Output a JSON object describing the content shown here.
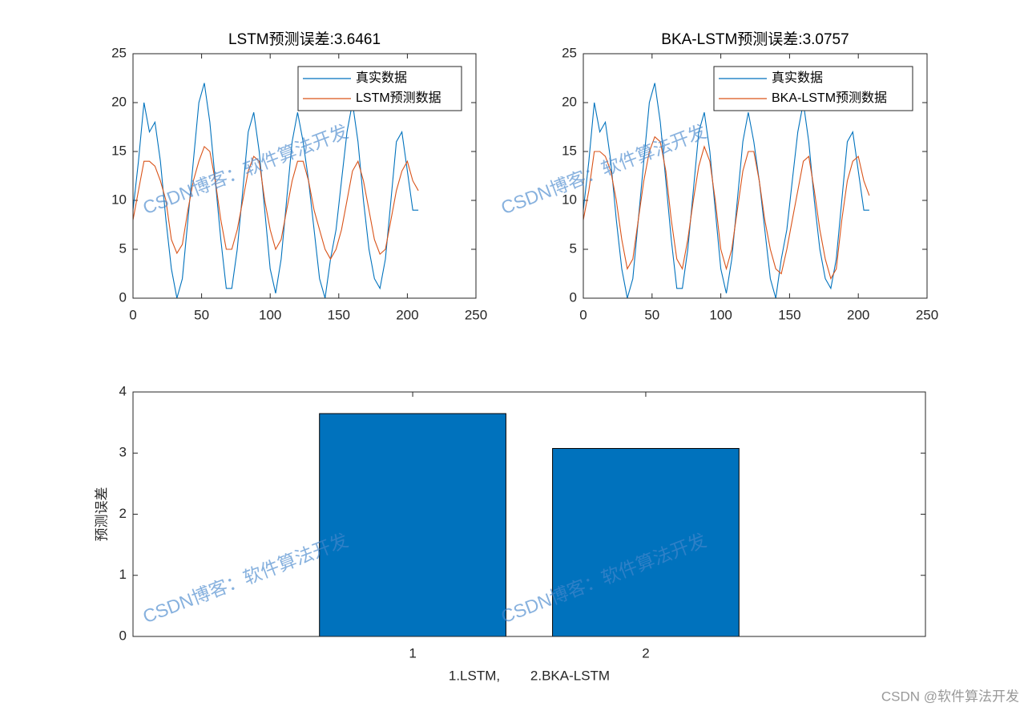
{
  "chart_data": [
    {
      "type": "line",
      "title": "LSTM预测误差:3.6461",
      "x": [
        0,
        4,
        8,
        12,
        16,
        20,
        24,
        28,
        32,
        36,
        40,
        44,
        48,
        52,
        56,
        60,
        64,
        68,
        72,
        76,
        80,
        84,
        88,
        92,
        96,
        100,
        104,
        108,
        112,
        116,
        120,
        124,
        128,
        132,
        136,
        140,
        144,
        148,
        152,
        156,
        160,
        164,
        168,
        172,
        176,
        180,
        184,
        188,
        192,
        196,
        200,
        204,
        208
      ],
      "series": [
        {
          "name": "真实数据",
          "color": "#0072BD",
          "values": [
            9,
            14,
            20,
            17,
            18,
            14,
            8,
            3,
            0,
            2,
            8,
            14,
            20,
            22,
            18,
            12,
            6,
            1,
            1,
            5,
            11,
            17,
            19,
            15,
            9,
            3,
            0.5,
            4,
            10,
            16,
            19,
            16,
            12,
            7,
            2,
            0,
            4,
            7,
            12,
            17,
            20,
            16,
            10,
            5,
            2,
            1,
            4,
            10,
            16,
            17,
            13,
            9,
            9
          ]
        },
        {
          "name": "LSTM预测数据",
          "color": "#D95319",
          "values": [
            8,
            11,
            14,
            14,
            13.5,
            12,
            10,
            6,
            4.6,
            5.5,
            9,
            12,
            14,
            15.5,
            15,
            12,
            8,
            5,
            5,
            7,
            10,
            13,
            14.5,
            14,
            10,
            7,
            5,
            6,
            9,
            12,
            14,
            14,
            12,
            9,
            7,
            5,
            4,
            5,
            7,
            10,
            13,
            14,
            12,
            9,
            6,
            4.5,
            5,
            8,
            11,
            13,
            14,
            12,
            11
          ]
        }
      ],
      "xlim": [
        0,
        250
      ],
      "xticks": [
        0,
        50,
        100,
        150,
        200,
        250
      ],
      "ylim": [
        0,
        25
      ],
      "yticks": [
        0,
        5,
        10,
        15,
        20,
        25
      ],
      "legend": "northeast"
    },
    {
      "type": "line",
      "title": "BKA-LSTM预测误差:3.0757",
      "x": [
        0,
        4,
        8,
        12,
        16,
        20,
        24,
        28,
        32,
        36,
        40,
        44,
        48,
        52,
        56,
        60,
        64,
        68,
        72,
        76,
        80,
        84,
        88,
        92,
        96,
        100,
        104,
        108,
        112,
        116,
        120,
        124,
        128,
        132,
        136,
        140,
        144,
        148,
        152,
        156,
        160,
        164,
        168,
        172,
        176,
        180,
        184,
        188,
        192,
        196,
        200,
        204,
        208
      ],
      "series": [
        {
          "name": "真实数据",
          "color": "#0072BD",
          "values": [
            9,
            14,
            20,
            17,
            18,
            14,
            8,
            3,
            0,
            2,
            8,
            14,
            20,
            22,
            18,
            12,
            6,
            1,
            1,
            5,
            11,
            17,
            19,
            15,
            9,
            3,
            0.5,
            4,
            10,
            16,
            19,
            16,
            12,
            7,
            2,
            0,
            4,
            7,
            12,
            17,
            20,
            16,
            10,
            5,
            2,
            1,
            4,
            10,
            16,
            17,
            13,
            9,
            9
          ]
        },
        {
          "name": "BKA-LSTM预测数据",
          "color": "#D95319",
          "values": [
            8,
            11,
            15,
            15,
            14.5,
            13,
            10,
            6,
            3,
            4,
            8,
            12,
            15,
            16.5,
            16,
            13,
            8,
            4,
            3,
            6,
            10,
            13.5,
            15.5,
            14,
            10,
            5,
            3,
            5,
            9,
            13,
            15,
            15,
            12,
            8,
            5,
            3,
            2.5,
            5,
            8,
            11,
            14,
            14.5,
            11,
            7,
            4,
            2,
            3,
            8,
            12,
            14,
            14.5,
            12,
            10.5
          ]
        }
      ],
      "xlim": [
        0,
        250
      ],
      "xticks": [
        0,
        50,
        100,
        150,
        200,
        250
      ],
      "ylim": [
        0,
        25
      ],
      "yticks": [
        0,
        5,
        10,
        15,
        20,
        25
      ],
      "legend": "northeast"
    },
    {
      "type": "bar",
      "x": [
        1,
        2
      ],
      "values": [
        3.6461,
        3.0757
      ],
      "color": "#0072BD",
      "xlim": [
        -0.2,
        3.2
      ],
      "xticks": [
        1,
        2
      ],
      "ylim": [
        0,
        4
      ],
      "yticks": [
        0,
        1,
        2,
        3,
        4
      ],
      "xlabel": "1.LSTM,        2.BKA-LSTM",
      "ylabel": "预测误差"
    }
  ],
  "watermark": "CSDN博客：软件算法开发",
  "footer": "CSDN @软件算法开发"
}
